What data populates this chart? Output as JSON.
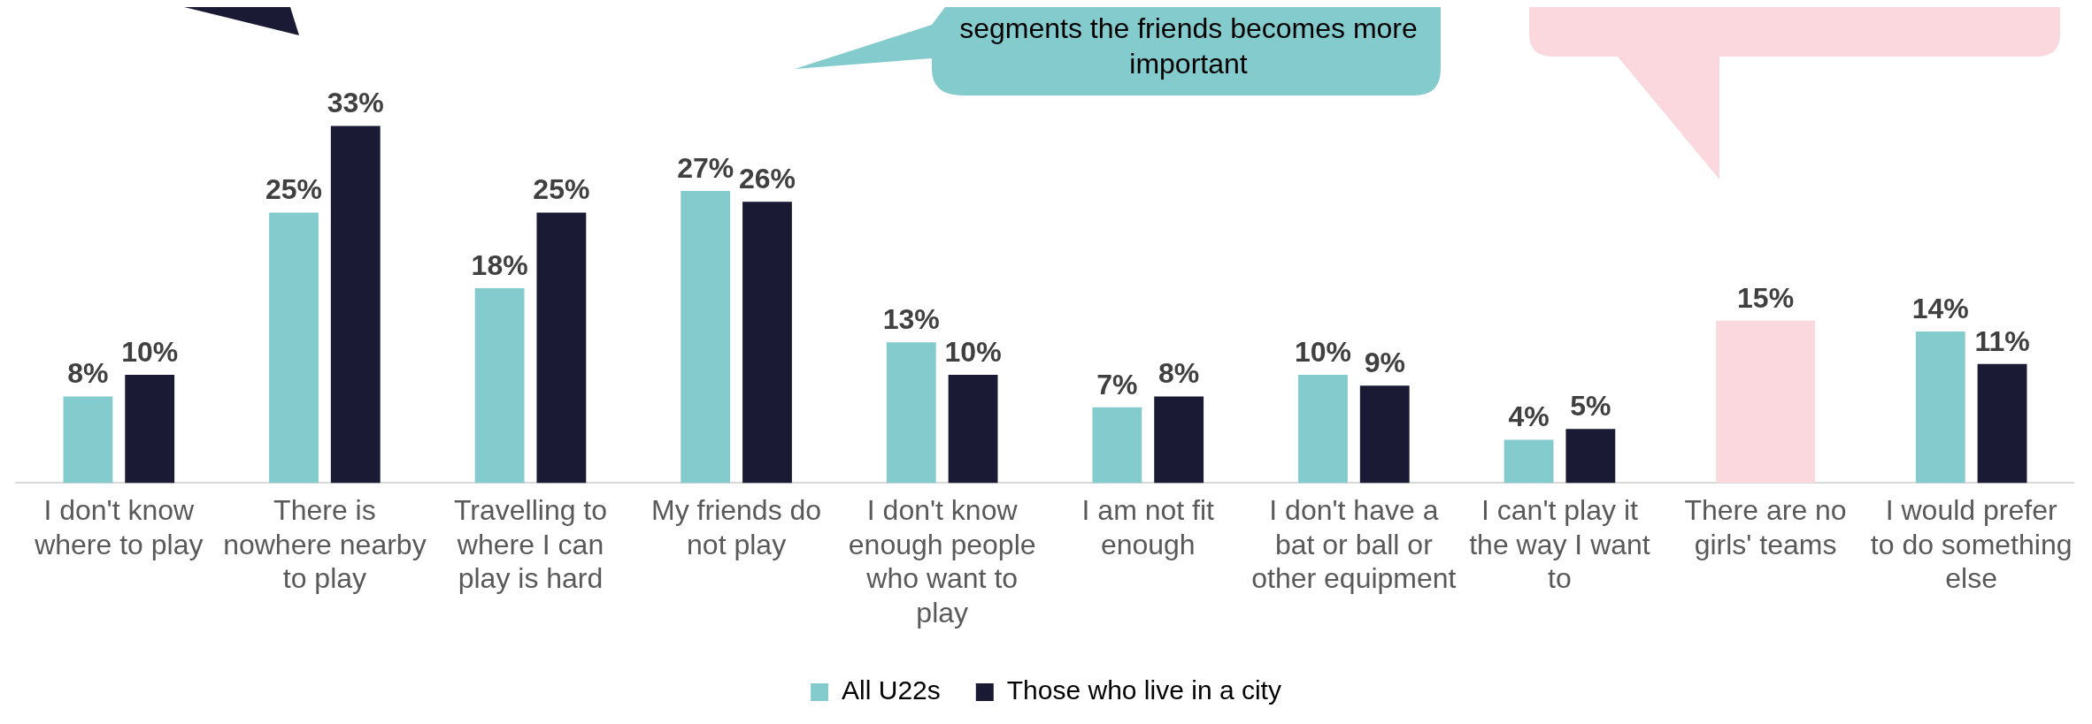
{
  "chart_data": {
    "type": "bar",
    "categories": [
      "I don't know where to play",
      "There is nowhere nearby to play",
      "Travelling to where I can play is hard",
      "My friends do not play",
      "I don't know enough people who want to play",
      "I am not fit enough",
      "I don't have a bat or ball or other equipment",
      "I can't play it the way I want to",
      "There are no girls' teams",
      "I would prefer to do something else"
    ],
    "series": [
      {
        "name": "All U22s",
        "color": "#84cbce",
        "colors": [
          "#84cbce",
          "#84cbce",
          "#84cbce",
          "#84cbce",
          "#84cbce",
          "#84cbce",
          "#84cbce",
          "#84cbce",
          "#fbd7de",
          "#84cbce"
        ],
        "values": [
          8,
          25,
          18,
          27,
          13,
          7,
          10,
          4,
          15,
          14
        ],
        "value_labels": [
          "8%",
          "25%",
          "18%",
          "27%",
          "13%",
          "7%",
          "10%",
          "4%",
          "15%",
          "14%"
        ]
      },
      {
        "name": "Those who live in a city",
        "color": "#1a1a35",
        "values": [
          10,
          33,
          25,
          26,
          10,
          8,
          9,
          5,
          null,
          11
        ],
        "value_labels": [
          "10%",
          "33%",
          "25%",
          "26%",
          "10%",
          "8%",
          "9%",
          "5%",
          null,
          "11%"
        ]
      }
    ],
    "annotations": [
      "segments the friends becomes more important"
    ],
    "legend": "bottom",
    "grid": false
  }
}
